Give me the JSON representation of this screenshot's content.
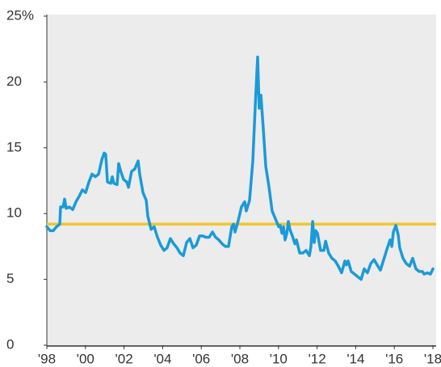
{
  "chart_data": {
    "type": "line",
    "x": [
      1998.0,
      1998.17,
      1998.33,
      1998.5,
      1998.67,
      1998.71,
      1998.84,
      1998.92,
      1999.0,
      1999.17,
      1999.34,
      1999.51,
      1999.67,
      1999.84,
      2000.01,
      2000.18,
      2000.34,
      2000.51,
      2000.68,
      2000.85,
      2000.97,
      2001.05,
      2001.14,
      2001.31,
      2001.39,
      2001.47,
      2001.64,
      2001.72,
      2001.81,
      2001.97,
      2002.14,
      2002.23,
      2002.39,
      2002.56,
      2002.73,
      2002.81,
      2002.98,
      2003.15,
      2003.23,
      2003.4,
      2003.56,
      2003.73,
      2003.9,
      2004.07,
      2004.23,
      2004.4,
      2004.57,
      2004.74,
      2004.9,
      2005.07,
      2005.24,
      2005.41,
      2005.57,
      2005.74,
      2005.91,
      2006.08,
      2006.24,
      2006.41,
      2006.58,
      2006.74,
      2006.91,
      2007.08,
      2007.25,
      2007.41,
      2007.58,
      2007.67,
      2007.75,
      2007.92,
      2008.08,
      2008.25,
      2008.33,
      2008.5,
      2008.67,
      2008.79,
      2008.92,
      2009.0,
      2009.09,
      2009.21,
      2009.34,
      2009.51,
      2009.67,
      2009.84,
      2010.01,
      2010.09,
      2010.18,
      2010.26,
      2010.34,
      2010.43,
      2010.51,
      2010.59,
      2010.72,
      2010.85,
      2010.93,
      2011.1,
      2011.26,
      2011.43,
      2011.6,
      2011.68,
      2011.77,
      2011.85,
      2011.93,
      2012.02,
      2012.18,
      2012.35,
      2012.44,
      2012.6,
      2012.77,
      2012.94,
      2013.1,
      2013.27,
      2013.44,
      2013.52,
      2013.61,
      2013.77,
      2013.94,
      2014.11,
      2014.28,
      2014.44,
      2014.61,
      2014.78,
      2014.95,
      2015.11,
      2015.28,
      2015.45,
      2015.62,
      2015.78,
      2015.87,
      2015.95,
      2016.08,
      2016.2,
      2016.28,
      2016.45,
      2016.62,
      2016.79,
      2016.95,
      2017.12,
      2017.29,
      2017.46,
      2017.54,
      2017.71,
      2017.87,
      2018.0
    ],
    "series": [
      {
        "color": "#1b9ad8",
        "values": [
          9.0,
          8.7,
          8.7,
          9.0,
          9.2,
          10.5,
          10.5,
          11.1,
          10.4,
          10.5,
          10.3,
          10.9,
          11.3,
          11.8,
          11.6,
          12.4,
          13.0,
          12.8,
          13.0,
          14.1,
          14.6,
          14.5,
          12.4,
          12.3,
          12.8,
          12.3,
          12.2,
          13.8,
          13.3,
          12.6,
          12.4,
          12.0,
          13.2,
          13.4,
          14.0,
          13.0,
          11.6,
          11.0,
          9.8,
          8.8,
          9.0,
          8.2,
          7.6,
          7.2,
          7.4,
          8.1,
          7.7,
          7.4,
          7.0,
          6.8,
          7.8,
          8.1,
          7.4,
          7.6,
          8.3,
          8.3,
          8.2,
          8.2,
          8.6,
          8.2,
          8.0,
          7.7,
          7.5,
          7.5,
          9.0,
          9.2,
          8.6,
          9.5,
          10.5,
          10.9,
          10.2,
          11.0,
          14.0,
          18.0,
          21.9,
          18.0,
          19.0,
          16.5,
          13.6,
          12.0,
          10.2,
          9.6,
          9.0,
          9.1,
          8.5,
          9.0,
          8.0,
          8.5,
          9.4,
          8.8,
          8.3,
          7.7,
          8.0,
          7.0,
          7.0,
          7.2,
          6.8,
          7.5,
          9.4,
          7.8,
          8.7,
          8.5,
          7.2,
          7.2,
          7.9,
          7.0,
          6.6,
          6.4,
          6.0,
          5.5,
          6.4,
          6.1,
          6.4,
          5.6,
          5.4,
          5.2,
          5.0,
          5.8,
          5.5,
          6.2,
          6.5,
          6.1,
          5.7,
          6.5,
          7.3,
          8.0,
          7.5,
          8.6,
          9.1,
          8.4,
          7.4,
          6.6,
          6.2,
          6.0,
          6.6,
          5.8,
          5.6,
          5.6,
          5.4,
          5.5,
          5.4,
          5.8
        ]
      }
    ],
    "reference_line": {
      "value": 9.2,
      "color": "#f2c530"
    },
    "xlim": [
      1998,
      2018
    ],
    "xticks": [
      {
        "value": 1998,
        "label": "'98"
      },
      {
        "value": 2000,
        "label": "'00"
      },
      {
        "value": 2002,
        "label": "'02"
      },
      {
        "value": 2004,
        "label": "'04"
      },
      {
        "value": 2006,
        "label": "'06"
      },
      {
        "value": 2008,
        "label": "'08"
      },
      {
        "value": 2010,
        "label": "'10"
      },
      {
        "value": 2012,
        "label": "'12"
      },
      {
        "value": 2014,
        "label": "'14"
      },
      {
        "value": 2016,
        "label": "'16"
      },
      {
        "value": 2018,
        "label": "'18"
      }
    ],
    "ylim": [
      0,
      25
    ],
    "yticks": [
      0,
      5,
      10,
      15,
      20,
      {
        "value": 25,
        "label": "25%"
      }
    ]
  }
}
